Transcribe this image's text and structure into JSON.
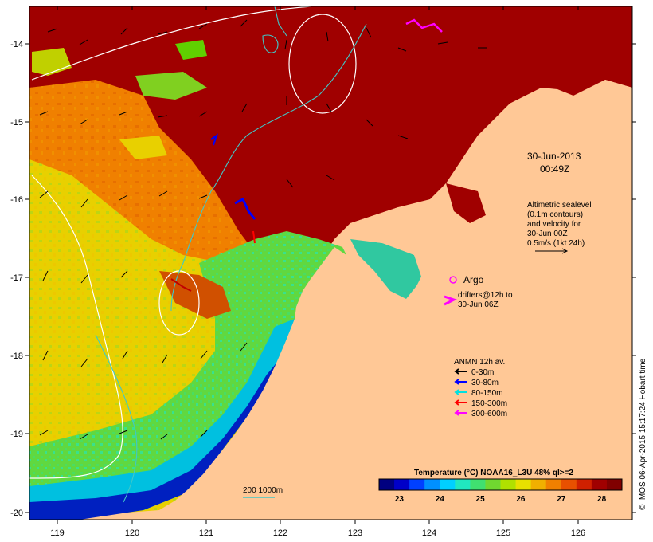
{
  "map": {
    "date_line1": "30-Jun-2013",
    "date_line2": "00:49Z",
    "altimetry_lines": [
      "Altimetric sealevel",
      "(0.1m contours)",
      "and velocity for",
      "30-Jun 00Z",
      "0.5m/s (1kt 24h)"
    ],
    "argo_label": "Argo",
    "drifters_lines": [
      "drifters@12h to",
      "30-Jun 06Z"
    ],
    "anmn_title": "ANMN 12h av.",
    "anmn_legend": [
      {
        "label": "0-30m",
        "color": "#000000"
      },
      {
        "label": "30-80m",
        "color": "#0000ff"
      },
      {
        "label": "80-150m",
        "color": "#00e0e0"
      },
      {
        "label": "150-300m",
        "color": "#ff0000"
      },
      {
        "label": "300-600m",
        "color": "#ff00ff"
      }
    ],
    "depth_label": "200  1000m",
    "credit": "© IMOS 06-Apr-2015 15:17:24 Hobart time",
    "lon_ticks": [
      "119",
      "120",
      "121",
      "122",
      "123",
      "124",
      "125",
      "126"
    ],
    "lat_ticks": [
      "-14",
      "-15",
      "-16",
      "-17",
      "-18",
      "-19",
      "-20"
    ],
    "colorbar": {
      "title": "Temperature (°C) NOAA16_L3U 48% ql>=2",
      "ticks": [
        "23",
        "24",
        "25",
        "26",
        "27",
        "28"
      ],
      "min": 22.5,
      "max": 28.5,
      "colors": [
        "#000080",
        "#0000c8",
        "#0040ff",
        "#0090ff",
        "#00d0ff",
        "#20e8c0",
        "#40e070",
        "#70d830",
        "#b0e000",
        "#e8e000",
        "#f0b000",
        "#f08000",
        "#e85000",
        "#d02000",
        "#a00000",
        "#800000"
      ]
    },
    "colors": {
      "land": "#ffc896",
      "hot": "#a00000",
      "contour": "#ffffff",
      "isobath": "#40c8c8"
    }
  }
}
